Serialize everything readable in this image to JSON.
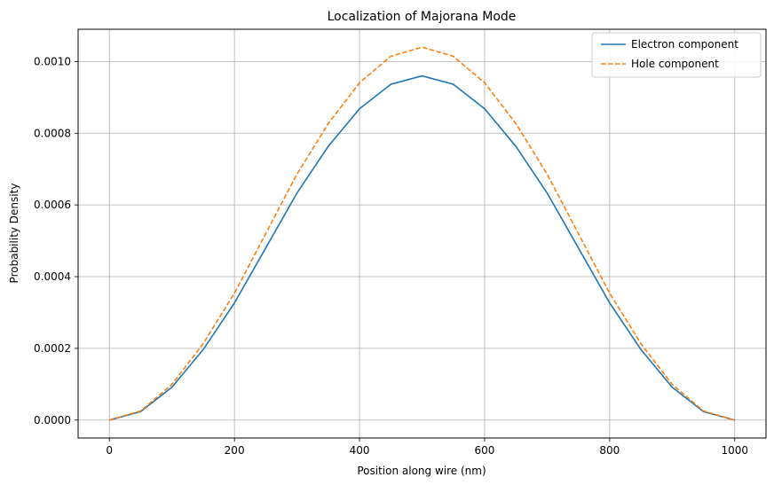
{
  "chart_data": {
    "type": "line",
    "title": "Localization of Majorana Mode",
    "xlabel": "Position along wire (nm)",
    "ylabel": "Probability Density",
    "xlim": [
      -50,
      1050
    ],
    "ylim": [
      -5e-05,
      0.00109
    ],
    "xticks": [
      0,
      200,
      400,
      600,
      800,
      1000
    ],
    "xtick_labels": [
      "0",
      "200",
      "400",
      "600",
      "800",
      "1000"
    ],
    "yticks": [
      0,
      0.0002,
      0.0004,
      0.0006,
      0.0008,
      0.001
    ],
    "ytick_labels": [
      "0.0000",
      "0.0002",
      "0.0004",
      "0.0006",
      "0.0008",
      "0.0010"
    ],
    "grid": true,
    "legend_position": "top-right",
    "series": [
      {
        "name": "Electron component",
        "color": "#1f77b4",
        "style": "solid",
        "x": [
          0,
          50,
          100,
          150,
          200,
          250,
          300,
          350,
          400,
          450,
          500,
          550,
          600,
          650,
          700,
          750,
          800,
          850,
          900,
          950,
          1000
        ],
        "values": [
          0,
          2.35e-05,
          9.17e-05,
          0.0001966,
          0.0003268,
          0.00048,
          0.0006332,
          0.0007634,
          0.0008683,
          0.0009365,
          0.00096,
          0.0009365,
          0.0008683,
          0.0007634,
          0.0006332,
          0.00048,
          0.0003268,
          0.0001966,
          9.17e-05,
          2.35e-05,
          0
        ]
      },
      {
        "name": "Hole component",
        "color": "#ff7f0e",
        "style": "dashed",
        "x": [
          0,
          50,
          100,
          150,
          200,
          250,
          300,
          350,
          400,
          450,
          500,
          550,
          600,
          650,
          700,
          750,
          800,
          850,
          900,
          950,
          1000
        ],
        "values": [
          0,
          2.54e-05,
          9.93e-05,
          0.000213,
          0.000354,
          0.00052,
          0.000686,
          0.000827,
          0.0009407,
          0.0010146,
          0.00104,
          0.0010146,
          0.0009407,
          0.000827,
          0.000686,
          0.00052,
          0.000354,
          0.000213,
          9.93e-05,
          2.54e-05,
          0
        ]
      }
    ]
  }
}
